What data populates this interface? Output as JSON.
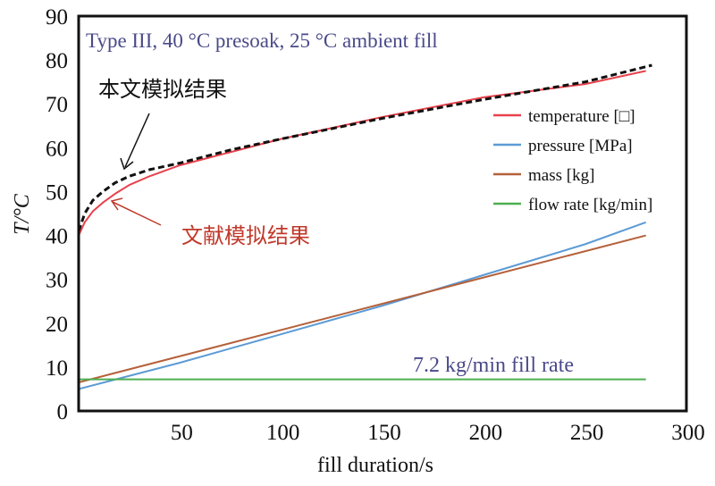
{
  "chart_data": {
    "type": "line",
    "title": "Type III, 40 °C presoak, 25 °C ambient fill",
    "xlabel": "fill duration/s",
    "ylabel": "T/°C",
    "xlim": [
      0,
      300
    ],
    "ylim": [
      0,
      90
    ],
    "xticks": [
      "50",
      "100",
      "150",
      "200",
      "250",
      "300"
    ],
    "yticks": [
      "0",
      "10",
      "20",
      "30",
      "40",
      "50",
      "60",
      "70",
      "80",
      "90"
    ],
    "grid": false,
    "legend_position": "right",
    "series": [
      {
        "name": "temperature [□]",
        "color": "#e8414b",
        "style": "solid",
        "x": [
          0,
          3,
          7,
          12,
          18,
          25,
          35,
          50,
          75,
          100,
          150,
          200,
          250,
          280
        ],
        "y": [
          40,
          43,
          45.5,
          47.5,
          49.5,
          51.5,
          53.5,
          56,
          59,
          62,
          67,
          71.5,
          74.5,
          77.5
        ]
      },
      {
        "name": "pressure [MPa]",
        "color": "#5b9bd5",
        "style": "solid",
        "x": [
          0,
          50,
          100,
          150,
          200,
          250,
          280
        ],
        "y": [
          5,
          11,
          17.5,
          24,
          31,
          38,
          43
        ]
      },
      {
        "name": "mass [kg]",
        "color": "#b5603a",
        "style": "solid",
        "x": [
          0,
          280
        ],
        "y": [
          6.5,
          40
        ]
      },
      {
        "name": "flow rate [kg/min]",
        "color": "#4caf50",
        "style": "solid",
        "x": [
          0,
          280
        ],
        "y": [
          7.2,
          7.2
        ]
      },
      {
        "color": "#111111",
        "style": "dashed",
        "x": [
          0,
          3,
          7,
          12,
          18,
          25,
          35,
          50,
          75,
          100,
          150,
          200,
          250,
          283
        ],
        "y": [
          41,
          45,
          48,
          50,
          52,
          53.5,
          55,
          56.5,
          59.5,
          62,
          66.7,
          71,
          75,
          78.8
        ]
      }
    ],
    "annotations": {
      "this_work": "本文模拟结果",
      "literature": "文献模拟结果",
      "fill_rate": "7.2 kg/min fill rate"
    },
    "colors": {
      "title": "#4a4a8a",
      "literature": "#c0392b",
      "fill_rate": "#4a4a8a"
    }
  }
}
